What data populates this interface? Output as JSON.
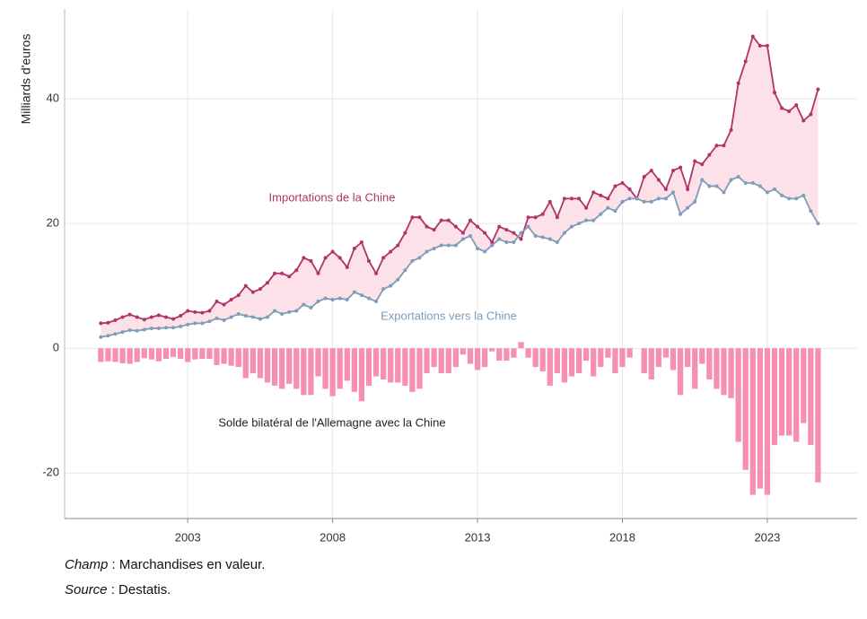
{
  "chart_data": {
    "type": "line",
    "ylabel": "Milliards d'euros",
    "xlim": [
      1998.75,
      2026.1
    ],
    "xticks": [
      2003,
      2008,
      2013,
      2018,
      2023
    ],
    "ylim": [
      -27.3,
      54.4
    ],
    "yticks": [
      -20,
      0,
      20,
      40
    ],
    "grid": true,
    "fill_between": {
      "color": "#fde1e9"
    },
    "x": [
      2000,
      2000.25,
      2000.5,
      2000.75,
      2001,
      2001.25,
      2001.5,
      2001.75,
      2002,
      2002.25,
      2002.5,
      2002.75,
      2003,
      2003.25,
      2003.5,
      2003.75,
      2004,
      2004.25,
      2004.5,
      2004.75,
      2005,
      2005.25,
      2005.5,
      2005.75,
      2006,
      2006.25,
      2006.5,
      2006.75,
      2007,
      2007.25,
      2007.5,
      2007.75,
      2008,
      2008.25,
      2008.5,
      2008.75,
      2009,
      2009.25,
      2009.5,
      2009.75,
      2010,
      2010.25,
      2010.5,
      2010.75,
      2011,
      2011.25,
      2011.5,
      2011.75,
      2012,
      2012.25,
      2012.5,
      2012.75,
      2013,
      2013.25,
      2013.5,
      2013.75,
      2014,
      2014.25,
      2014.5,
      2014.75,
      2015,
      2015.25,
      2015.5,
      2015.75,
      2016,
      2016.25,
      2016.5,
      2016.75,
      2017,
      2017.25,
      2017.5,
      2017.75,
      2018,
      2018.25,
      2018.5,
      2018.75,
      2019,
      2019.25,
      2019.5,
      2019.75,
      2020,
      2020.25,
      2020.5,
      2020.75,
      2021,
      2021.25,
      2021.5,
      2021.75,
      2022,
      2022.25,
      2022.5,
      2022.75,
      2023,
      2023.25,
      2023.5,
      2023.75,
      2024,
      2024.25,
      2024.5,
      2024.75
    ],
    "series": [
      {
        "name": "Importations de la Chine",
        "type": "line",
        "color": "#b0336a",
        "values": [
          4.0,
          4.1,
          4.5,
          5.0,
          5.4,
          5.0,
          4.6,
          5.0,
          5.3,
          5.0,
          4.7,
          5.2,
          6.0,
          5.8,
          5.7,
          6.0,
          7.5,
          7.0,
          7.8,
          8.5,
          10.0,
          9.0,
          9.5,
          10.5,
          12.0,
          12.0,
          11.5,
          12.5,
          14.5,
          14.0,
          12.0,
          14.5,
          15.5,
          14.5,
          13.0,
          16.0,
          17.0,
          14.0,
          12.0,
          14.5,
          15.5,
          16.5,
          18.5,
          21.0,
          21.0,
          19.5,
          19.0,
          20.5,
          20.5,
          19.5,
          18.5,
          20.5,
          19.5,
          18.5,
          17.0,
          19.5,
          19.0,
          18.5,
          17.5,
          21.0,
          21.0,
          21.5,
          23.5,
          21.0,
          24.0,
          24.0,
          24.0,
          22.5,
          25.0,
          24.5,
          24.0,
          26.0,
          26.5,
          25.5,
          24.0,
          27.5,
          28.5,
          27.0,
          25.5,
          28.5,
          29.0,
          25.5,
          30.0,
          29.5,
          31.0,
          32.5,
          32.5,
          35.0,
          42.5,
          46.0,
          50.0,
          48.5,
          48.5,
          41.0,
          38.5,
          38.0,
          39.0,
          36.5,
          37.5,
          41.5
        ]
      },
      {
        "name": "Exportations vers la Chine",
        "type": "line",
        "color": "#7f9cb8",
        "values": [
          1.8,
          2.0,
          2.3,
          2.6,
          2.9,
          2.8,
          3.0,
          3.2,
          3.2,
          3.3,
          3.3,
          3.5,
          3.8,
          4.0,
          4.0,
          4.3,
          4.8,
          4.5,
          5.0,
          5.5,
          5.2,
          5.0,
          4.7,
          5.0,
          6.0,
          5.5,
          5.8,
          6.0,
          7.0,
          6.5,
          7.5,
          8.0,
          7.8,
          8.0,
          7.8,
          9.0,
          8.5,
          8.0,
          7.5,
          9.5,
          10.0,
          11.0,
          12.5,
          14.0,
          14.5,
          15.5,
          16.0,
          16.5,
          16.5,
          16.5,
          17.5,
          18.0,
          16.0,
          15.5,
          16.5,
          17.5,
          17.0,
          17.0,
          18.5,
          19.5,
          18.0,
          17.8,
          17.5,
          17.0,
          18.5,
          19.5,
          20.0,
          20.5,
          20.5,
          21.5,
          22.5,
          22.0,
          23.5,
          24.0,
          24.0,
          23.5,
          23.5,
          24.0,
          24.0,
          25.0,
          21.5,
          22.5,
          23.5,
          27.0,
          26.0,
          26.0,
          25.0,
          27.0,
          27.5,
          26.5,
          26.5,
          26.0,
          25.0,
          25.5,
          24.5,
          24.0,
          24.0,
          24.5,
          22.0,
          20.0
        ]
      },
      {
        "name": "Solde bilatéral de l'Allemagne avec la Chine",
        "type": "bar",
        "color": "#f590b4",
        "values": [
          -2.2,
          -2.1,
          -2.2,
          -2.4,
          -2.5,
          -2.2,
          -1.6,
          -1.8,
          -2.1,
          -1.7,
          -1.4,
          -1.7,
          -2.2,
          -1.8,
          -1.7,
          -1.7,
          -2.7,
          -2.5,
          -2.8,
          -3.0,
          -4.8,
          -4.0,
          -4.8,
          -5.5,
          -6.0,
          -6.5,
          -5.7,
          -6.5,
          -7.5,
          -7.5,
          -4.5,
          -6.5,
          -7.7,
          -6.5,
          -5.2,
          -7.0,
          -8.5,
          -6.0,
          -4.5,
          -5.0,
          -5.5,
          -5.5,
          -6.0,
          -7.0,
          -6.5,
          -4.0,
          -3.0,
          -4.0,
          -4.0,
          -3.0,
          -1.0,
          -2.5,
          -3.5,
          -3.0,
          -0.5,
          -2.0,
          -2.0,
          -1.5,
          1.0,
          -1.5,
          -3.0,
          -3.7,
          -6.0,
          -4.0,
          -5.5,
          -4.5,
          -4.0,
          -2.0,
          -4.5,
          -3.0,
          -1.5,
          -4.0,
          -3.0,
          -1.5,
          0,
          -4.0,
          -5.0,
          -3.0,
          -1.5,
          -3.5,
          -7.5,
          -3.0,
          -6.5,
          -2.5,
          -5.0,
          -6.5,
          -7.5,
          -8.0,
          -15.0,
          -19.5,
          -23.5,
          -22.5,
          -23.5,
          -15.5,
          -14.0,
          -14.0,
          -15.0,
          -12.0,
          -15.5,
          -21.5
        ]
      }
    ],
    "notes": [
      {
        "label": "Champ",
        "text": " : Marchandises en valeur."
      },
      {
        "label": "Source",
        "text": " : Destatis."
      }
    ]
  }
}
